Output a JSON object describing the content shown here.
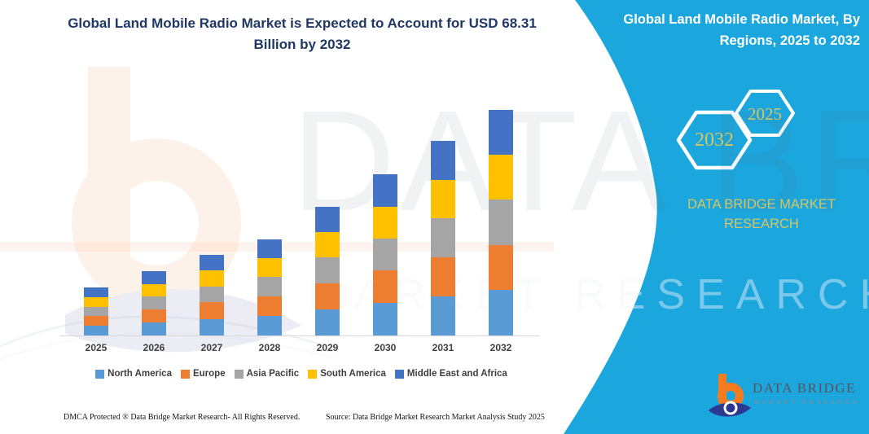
{
  "header": {
    "main_title": "Global Land Mobile Radio Market is Expected to Account for USD 68.31 Billion by 2032",
    "banner_title": "Global Land Mobile Radio Market, By Regions, 2025 to 2032"
  },
  "banner": {
    "color": "#1ca6de",
    "hexagon_left_label": "2032",
    "hexagon_right_label": "2025",
    "brand_line1": "DATA BRIDGE MARKET",
    "brand_line2": "RESEARCH",
    "accent_text_color": "#d5c763"
  },
  "chart_data": {
    "type": "bar",
    "stacked": true,
    "title": "Global Land Mobile Radio Market is Expected to Account for USD 68.31 Billion by 2032",
    "unit": "USD Billion",
    "categories": [
      "2025",
      "2026",
      "2027",
      "2028",
      "2029",
      "2030",
      "2031",
      "2032"
    ],
    "series": [
      {
        "name": "North America",
        "color": "#5B9BD5",
        "values": [
          3.0,
          4.0,
          5.0,
          6.0,
          8.0,
          9.9,
          11.9,
          13.8
        ]
      },
      {
        "name": "Europe",
        "color": "#ED7D31",
        "values": [
          2.9,
          4.0,
          5.0,
          5.9,
          7.8,
          9.8,
          11.8,
          13.7
        ]
      },
      {
        "name": "Asia Pacific",
        "color": "#A5A5A5",
        "values": [
          2.7,
          3.8,
          4.9,
          5.8,
          7.9,
          9.7,
          11.8,
          13.7
        ]
      },
      {
        "name": "South America",
        "color": "#FFC000",
        "values": [
          3.0,
          3.8,
          4.8,
          5.7,
          7.7,
          9.7,
          11.7,
          13.6
        ]
      },
      {
        "name": "Middle East and Africa",
        "color": "#4472C4",
        "values": [
          3.0,
          3.8,
          4.8,
          5.7,
          7.7,
          9.7,
          11.7,
          13.51
        ]
      }
    ],
    "totals": [
      14.6,
      19.4,
      24.5,
      29.1,
      39.1,
      48.8,
      58.9,
      68.31
    ],
    "total_2032_usd_billion": 68.31,
    "xlabel": "",
    "ylabel": "",
    "ylim": [
      0,
      70
    ],
    "grid": false,
    "y_axis_visible": false,
    "legend_position": "bottom"
  },
  "footer": {
    "left": "DMCA Protected ® Data Bridge Market Research-  All Rights Reserved.",
    "source": "Source: Data Bridge Market Research  Market Analysis Study 2025"
  },
  "logo": {
    "name": "DATA BRIDGE",
    "tagline": "MARKET RESEARCH"
  },
  "watermarks": {
    "ghost_text_1": "DATA BRIDGE",
    "ghost_text_2": "MARKET RESEARCH"
  }
}
